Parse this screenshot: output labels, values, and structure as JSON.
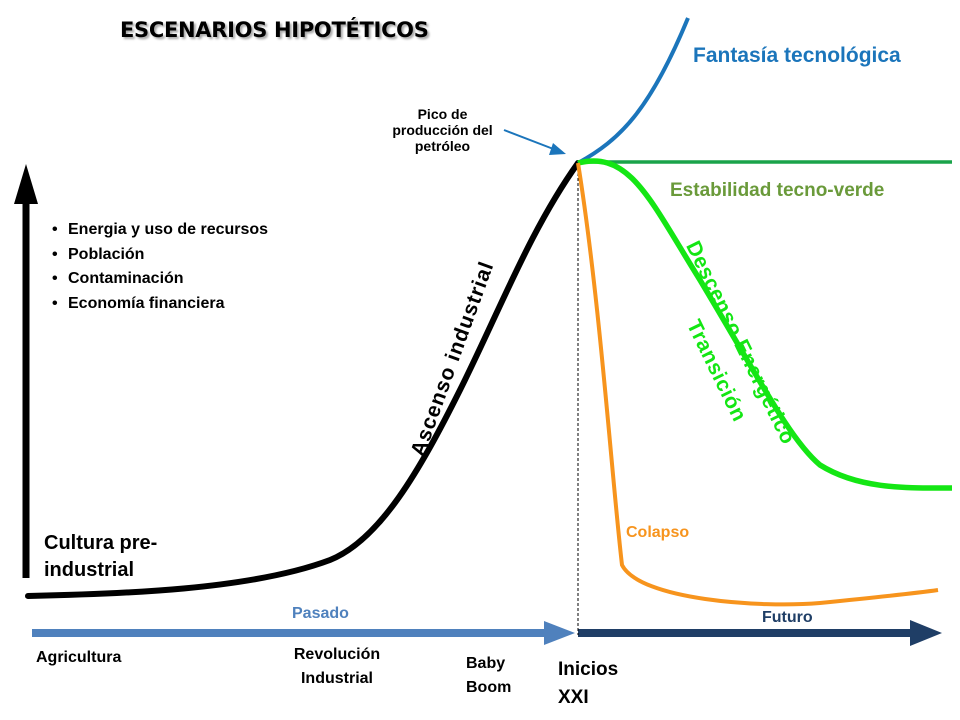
{
  "title": "ESCENARIOS HIPOTÉTICOS",
  "scenarios": {
    "fantasy": "Fantasía tecnológica",
    "green_stability": "Estabilidad tecno-verde",
    "descent": "Descenso Energético",
    "transition": "Transición",
    "collapse": "Colapso"
  },
  "peak_label": "Pico de producción del petróleo",
  "y_axis_items": [
    "Energia y uso de recursos",
    "Población",
    "Contaminación",
    "Economía financiera"
  ],
  "pre_industrial": "Cultura pre- industrial",
  "industrial_rise": "Ascenso industrial",
  "timeline": {
    "past": "Pasado",
    "future": "Futuro",
    "agriculture": "Agricultura",
    "industrial_revolution": "Revolución Industrial",
    "baby_boom": "Baby Boom",
    "xxi": "Inicios XXI"
  },
  "colors": {
    "fantasy": "#1b75bb",
    "green_stability": "#1aa34a",
    "descent": "#14e614",
    "collapse": "#f7941d",
    "past_arrow": "#4f81bd",
    "future_arrow": "#1f3e66",
    "main_curve": "#000000"
  }
}
